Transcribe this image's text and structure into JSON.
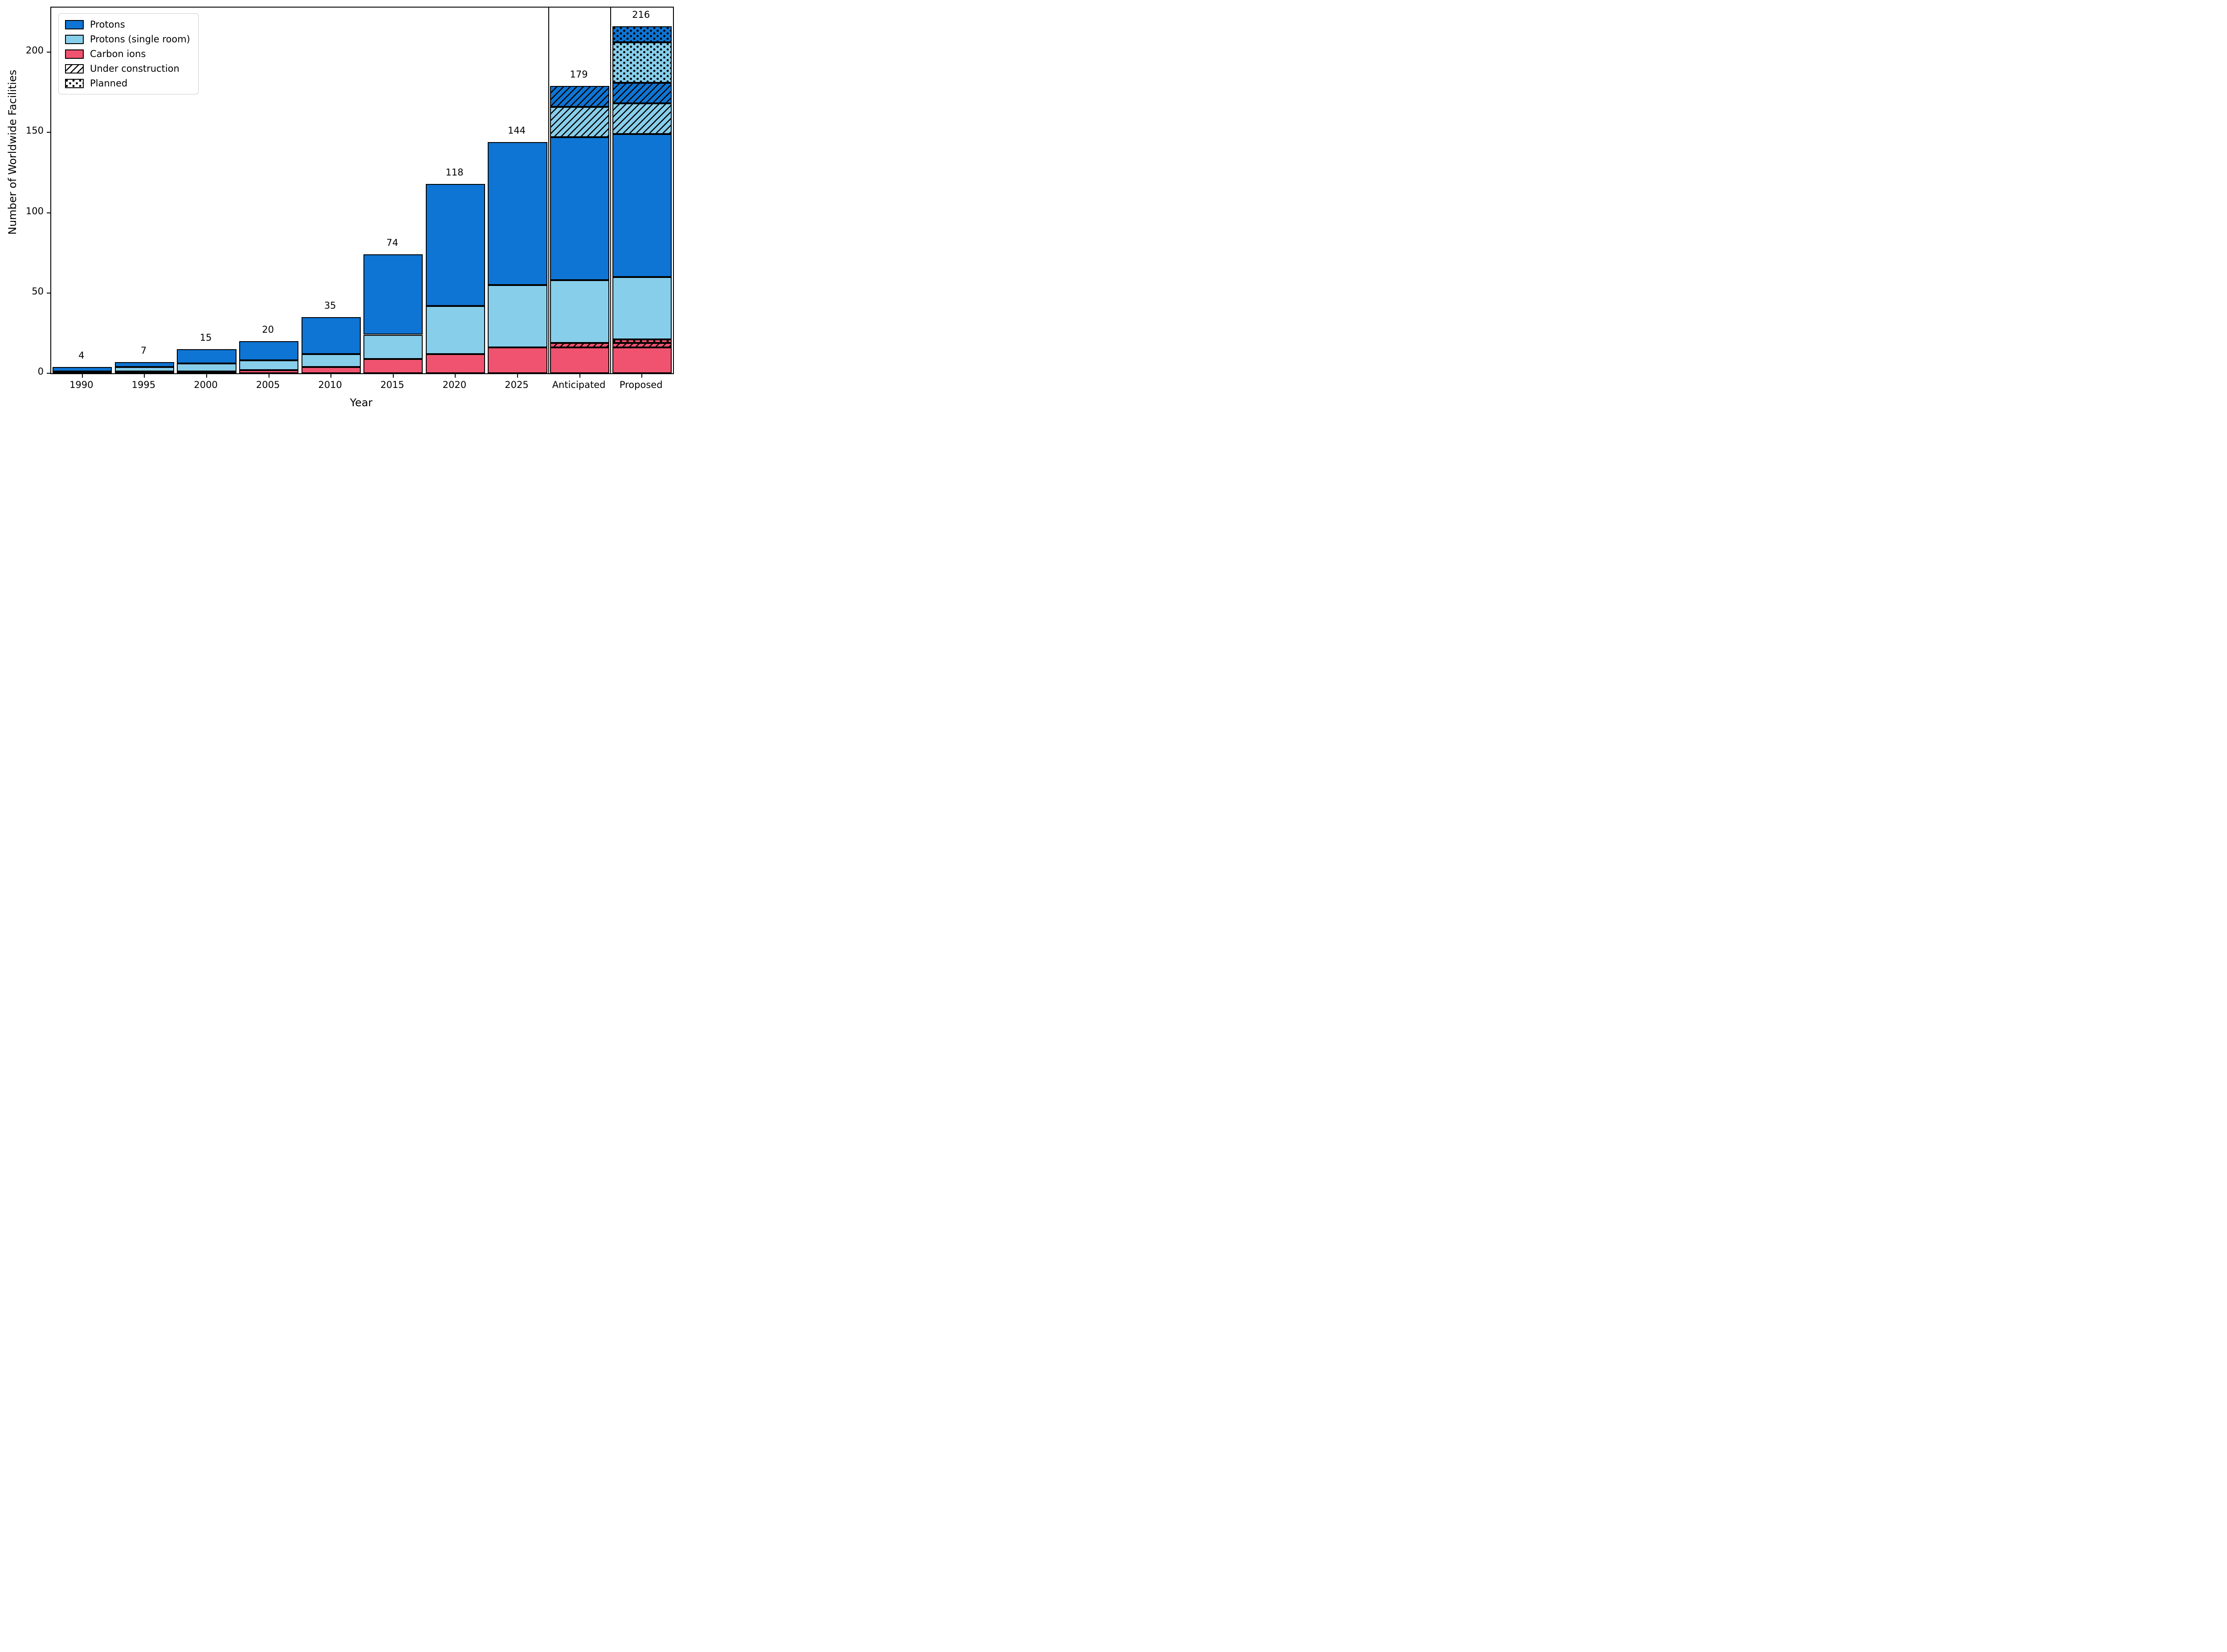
{
  "figure": {
    "xlabel": "Year",
    "ylabel": "Number of Worldwide Facilities"
  },
  "axis": {
    "y_ticks": [
      0,
      50,
      100,
      150,
      200
    ],
    "ylim": [
      0,
      227.7
    ],
    "grid": false
  },
  "legend": {
    "position": "upper-left",
    "items": [
      {
        "label": "Protons",
        "style": "protons"
      },
      {
        "label": "Protons (single room)",
        "style": "single"
      },
      {
        "label": "Carbon ions",
        "style": "carbon"
      },
      {
        "label": "Under construction",
        "style": "uc"
      },
      {
        "label": "Planned",
        "style": "planned"
      }
    ]
  },
  "colors": {
    "protons": "#0e75d4",
    "protons_single_room": "#87ceeb",
    "carbon_ions": "#f0536f",
    "edge": "#000000",
    "background": "#ffffff"
  },
  "chart_data": {
    "type": "bar",
    "stacked": true,
    "title": "",
    "xlabel": "Year",
    "ylabel": "Number of Worldwide Facilities",
    "categories": [
      "1990",
      "1995",
      "2000",
      "2005",
      "2010",
      "2015",
      "2020",
      "2025",
      "Anticipated",
      "Proposed"
    ],
    "series": [
      {
        "name": "Carbon ions",
        "style": "carbon",
        "pattern": "solid",
        "values": [
          0,
          1,
          1,
          2,
          4,
          9,
          12,
          16,
          16,
          16
        ]
      },
      {
        "name": "Carbon ions (under construction)",
        "style": "carbon-uc",
        "pattern": "hatch",
        "values": [
          0,
          0,
          0,
          0,
          0,
          0,
          0,
          0,
          3,
          3
        ]
      },
      {
        "name": "Carbon ions (planned)",
        "style": "carbon-planned",
        "pattern": "dots",
        "values": [
          0,
          0,
          0,
          0,
          0,
          0,
          0,
          0,
          0,
          2
        ]
      },
      {
        "name": "Protons (single room)",
        "style": "single",
        "pattern": "solid",
        "values": [
          1,
          3,
          5,
          6,
          8,
          15,
          30,
          39,
          39,
          39
        ]
      },
      {
        "name": "Protons",
        "style": "protons",
        "pattern": "solid",
        "values": [
          3,
          3,
          9,
          12,
          23,
          50,
          76,
          89,
          89,
          89
        ]
      },
      {
        "name": "Protons single room (under construction)",
        "style": "single-uc",
        "pattern": "hatch",
        "values": [
          0,
          0,
          0,
          0,
          0,
          0,
          0,
          0,
          19,
          19
        ]
      },
      {
        "name": "Protons (under construction)",
        "style": "protons-uc",
        "pattern": "hatch",
        "values": [
          0,
          0,
          0,
          0,
          0,
          0,
          0,
          0,
          13,
          13
        ]
      },
      {
        "name": "Protons single room (planned)",
        "style": "single-planned",
        "pattern": "dots",
        "values": [
          0,
          0,
          0,
          0,
          0,
          0,
          0,
          0,
          0,
          25
        ]
      },
      {
        "name": "Protons (planned)",
        "style": "protons-planned",
        "pattern": "dots",
        "values": [
          0,
          0,
          0,
          0,
          0,
          0,
          0,
          0,
          0,
          10
        ]
      }
    ],
    "totals": [
      4,
      7,
      15,
      20,
      35,
      74,
      118,
      144,
      179,
      216
    ],
    "separators_after_category_index": [
      7,
      8
    ],
    "legend_entries": [
      "Protons",
      "Protons (single room)",
      "Carbon ions",
      "Under construction",
      "Planned"
    ]
  }
}
